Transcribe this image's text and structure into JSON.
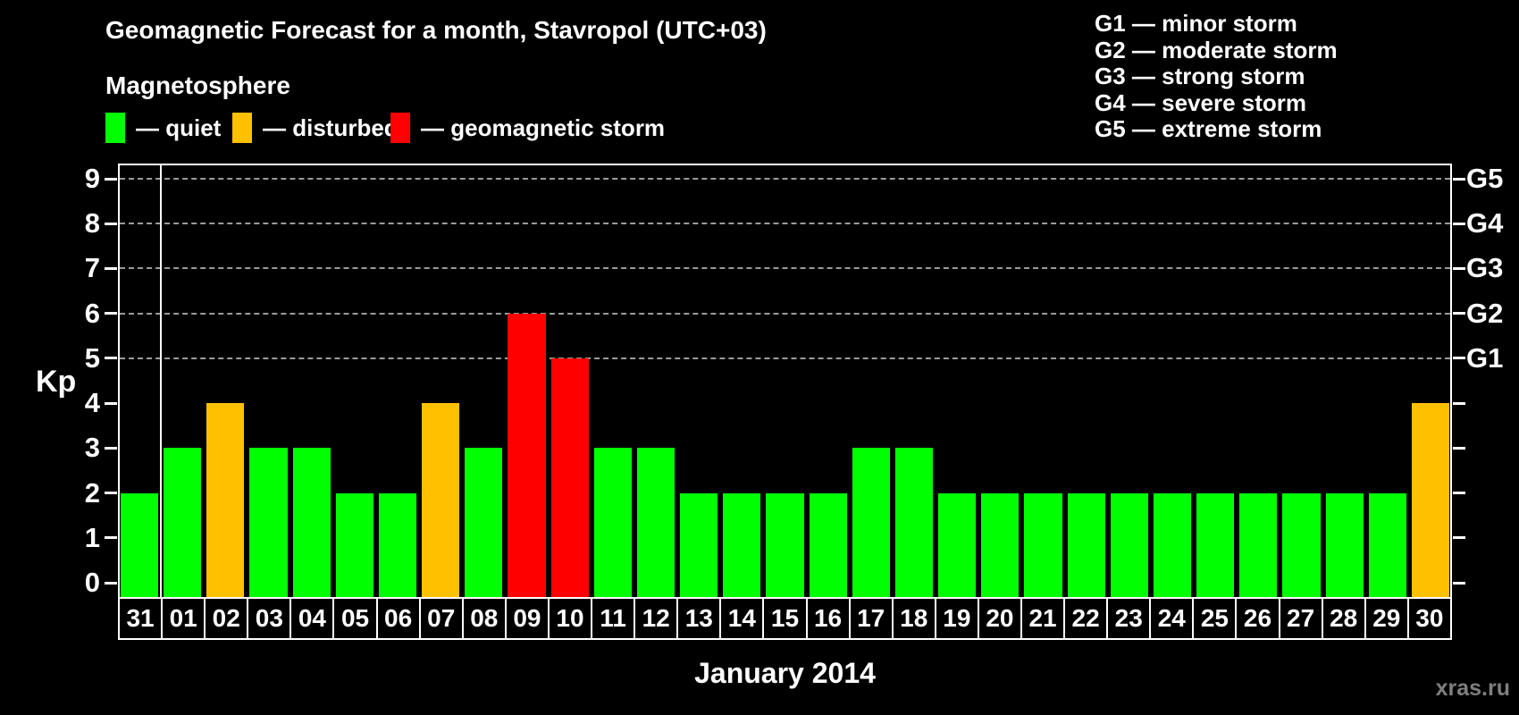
{
  "watermark": "xras.ru",
  "chart_data": {
    "type": "bar",
    "title": "Geomagnetic Forecast for a month, Stavropol (UTC+03)",
    "subtitle": "Magnetosphere",
    "xlabel": "January 2014",
    "ylabel": "Kp",
    "ylim": [
      0,
      9
    ],
    "grid": "dashed horizontal lines at Kp 5-9 only",
    "legend_position": "top-left row + storm scale list top-right",
    "yticks": [
      0,
      1,
      2,
      3,
      4,
      5,
      6,
      7,
      8,
      9
    ],
    "gridlines_at": [
      5,
      6,
      7,
      8,
      9
    ],
    "right_axis_labels": [
      {
        "label": "G1",
        "value": 5
      },
      {
        "label": "G2",
        "value": 6
      },
      {
        "label": "G3",
        "value": 7
      },
      {
        "label": "G4",
        "value": 8
      },
      {
        "label": "G5",
        "value": 9
      }
    ],
    "legend": [
      {
        "label": "— quiet",
        "status": "quiet",
        "color": "#00ff00"
      },
      {
        "label": "— disturbed",
        "status": "disturbed",
        "color": "#ffc000"
      },
      {
        "label": "— geomagnetic storm",
        "status": "storm",
        "color": "#ff0000"
      }
    ],
    "storm_scale": [
      "G1 — minor storm",
      "G2 — moderate storm",
      "G3 — strong storm",
      "G4 — severe storm",
      "G5 — extreme storm"
    ],
    "categories": [
      "31",
      "01",
      "02",
      "03",
      "04",
      "05",
      "06",
      "07",
      "08",
      "09",
      "10",
      "11",
      "12",
      "13",
      "14",
      "15",
      "16",
      "17",
      "18",
      "19",
      "20",
      "21",
      "22",
      "23",
      "24",
      "25",
      "26",
      "27",
      "28",
      "29",
      "30"
    ],
    "values": [
      2,
      3,
      4,
      3,
      3,
      2,
      2,
      4,
      3,
      6,
      5,
      3,
      3,
      2,
      2,
      2,
      2,
      3,
      3,
      2,
      2,
      2,
      2,
      2,
      2,
      2,
      2,
      2,
      2,
      2,
      4
    ],
    "statuses": [
      "quiet",
      "quiet",
      "disturbed",
      "quiet",
      "quiet",
      "quiet",
      "quiet",
      "disturbed",
      "quiet",
      "storm",
      "storm",
      "quiet",
      "quiet",
      "quiet",
      "quiet",
      "quiet",
      "quiet",
      "quiet",
      "quiet",
      "quiet",
      "quiet",
      "quiet",
      "quiet",
      "quiet",
      "quiet",
      "quiet",
      "quiet",
      "quiet",
      "quiet",
      "quiet",
      "disturbed"
    ],
    "colors": {
      "quiet": "#00ff00",
      "disturbed": "#ffc000",
      "storm": "#ff0000"
    },
    "month_separator_after_index": 0
  }
}
